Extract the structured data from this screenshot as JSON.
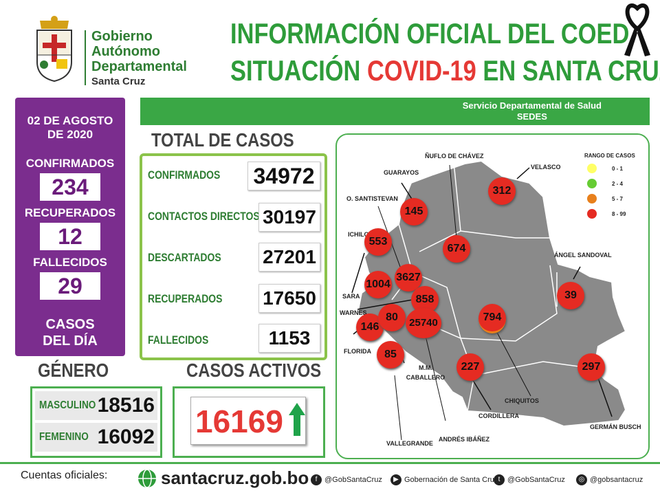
{
  "header": {
    "org_line1": "Gobierno",
    "org_line2": "Autónomo",
    "org_line3": "Departamental",
    "org_line4": "Santa Cruz",
    "title_line1": "INFORMACIÓN OFICIAL DEL COED",
    "title_line2_a": "SITUACIÓN ",
    "title_line2_b": "COVID-19",
    "title_line2_c": " EN SANTA CRUZ"
  },
  "band": {
    "line1": "Servicio Departamental de Salud",
    "line2": "SEDES"
  },
  "daily": {
    "date": "02 DE AGOSTO DE 2020",
    "confirmados_label": "CONFIRMADOS",
    "confirmados": "234",
    "recuperados_label": "RECUPERADOS",
    "recuperados": "12",
    "fallecidos_label": "FALLECIDOS",
    "fallecidos": "29",
    "footer": "CASOS DEL DÍA"
  },
  "totals": {
    "title": "TOTAL DE CASOS",
    "rows": [
      {
        "label": "CONFIRMADOS",
        "value": "34972"
      },
      {
        "label": "CONTACTOS DIRECTOS",
        "value": "30197"
      },
      {
        "label": "DESCARTADOS",
        "value": "27201"
      },
      {
        "label": "RECUPERADOS",
        "value": "17650"
      },
      {
        "label": "FALLECIDOS",
        "value": "1153"
      }
    ]
  },
  "genero": {
    "title": "GÉNERO",
    "masculino_label": "MASCULINO",
    "masculino": "18516",
    "femenino_label": "FEMENINO",
    "femenino": "16092"
  },
  "activos": {
    "title": "CASOS ACTIVOS",
    "value": "16169"
  },
  "map": {
    "legend_title": "RANGO DE CASOS",
    "legend": [
      {
        "label": "0 - 1",
        "color": "#ffff66"
      },
      {
        "label": "2 - 4",
        "color": "#66cc33"
      },
      {
        "label": "5 - 7",
        "color": "#e8801c"
      },
      {
        "label": "8 - 99",
        "color": "#e52b22"
      }
    ],
    "provinces": {
      "guarayos": {
        "name": "GUARAYOS",
        "value": "145"
      },
      "nuflo": {
        "name": "ÑUFLO DE CHÁVEZ",
        "value": "674"
      },
      "velasco": {
        "name": "VELASCO",
        "value": "312"
      },
      "santistevan": {
        "name": "O. SANTISTEVAN",
        "value": "3627"
      },
      "ichilo": {
        "name": "ICHILO",
        "value": "553"
      },
      "sara": {
        "name": "SARA",
        "value": "1004"
      },
      "warnes": {
        "name": "WARNES",
        "value": "858"
      },
      "florida": {
        "name": "FLORIDA",
        "value": "146"
      },
      "caballero": {
        "name": "M.M. CABALLERO",
        "value": "80"
      },
      "capital": {
        "name": "",
        "value": "25740"
      },
      "vallegrande": {
        "name": "VALLEGRANDE",
        "value": "85"
      },
      "ibanez": {
        "name": "ANDRÉS IBÁÑEZ",
        "value": ""
      },
      "chiquitos": {
        "name": "CHIQUITOS",
        "value": "794"
      },
      "cordillera": {
        "name": "CORDILLERA",
        "value": "227"
      },
      "sandoval": {
        "name": "ÁNGEL SANDOVAL",
        "value": "39"
      },
      "busch": {
        "name": "GERMÁN BUSCH",
        "value": "297"
      }
    }
  },
  "footer": {
    "label": "Cuentas oficiales:",
    "site": "santacruz.gob.bo",
    "facebook": "@GobSantaCruz",
    "youtube": "Gobernación de Santa Cruz",
    "twitter": "@GobSantaCruz",
    "instagram": "@gobsantacruz"
  }
}
